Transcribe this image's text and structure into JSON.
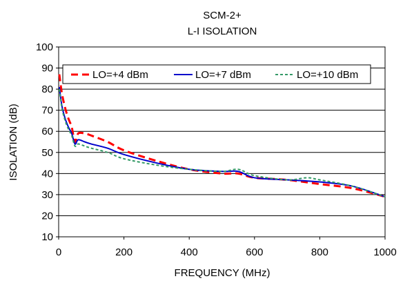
{
  "chart_data": {
    "type": "line",
    "title": "SCM-2+",
    "subtitle": "L-I ISOLATION",
    "xlabel": "FREQUENCY (MHz)",
    "ylabel": "ISOLATION (dB)",
    "xlim": [
      0,
      1000
    ],
    "ylim": [
      10,
      100
    ],
    "xticks": [
      0,
      200,
      400,
      600,
      800,
      1000
    ],
    "yticks": [
      10,
      20,
      30,
      40,
      50,
      60,
      70,
      80,
      90,
      100
    ],
    "grid": "horizontal",
    "legend_position": "top",
    "series": [
      {
        "name": "LO=+4 dBm",
        "color": "#ff0000",
        "style": "dashed",
        "x": [
          2,
          10,
          20,
          30,
          40,
          50,
          60,
          80,
          100,
          150,
          200,
          300,
          400,
          500,
          550,
          600,
          700,
          800,
          900,
          1000
        ],
        "y": [
          87,
          78,
          71,
          66,
          62,
          55,
          59,
          59,
          58,
          55,
          51,
          46,
          42,
          40,
          40,
          38,
          37,
          35,
          33,
          29
        ]
      },
      {
        "name": "LO=+7 dBm",
        "color": "#0000cc",
        "style": "solid",
        "x": [
          2,
          10,
          20,
          30,
          40,
          50,
          60,
          80,
          100,
          150,
          200,
          300,
          400,
          500,
          550,
          600,
          700,
          800,
          900,
          1000
        ],
        "y": [
          81,
          72,
          66,
          62,
          59,
          54,
          56,
          55,
          54,
          52,
          49,
          45,
          42,
          41,
          41,
          38,
          37,
          36,
          34,
          29
        ]
      },
      {
        "name": "LO=+10 dBm",
        "color": "#339966",
        "style": "dotted",
        "x": [
          2,
          10,
          20,
          30,
          40,
          50,
          60,
          80,
          100,
          150,
          200,
          300,
          400,
          500,
          550,
          600,
          700,
          760,
          800,
          900,
          1000
        ],
        "y": [
          80,
          71,
          65,
          61,
          58,
          53,
          54,
          53,
          52,
          50,
          47,
          44,
          42,
          41,
          42,
          39,
          37,
          38,
          37,
          34,
          29
        ]
      }
    ]
  }
}
